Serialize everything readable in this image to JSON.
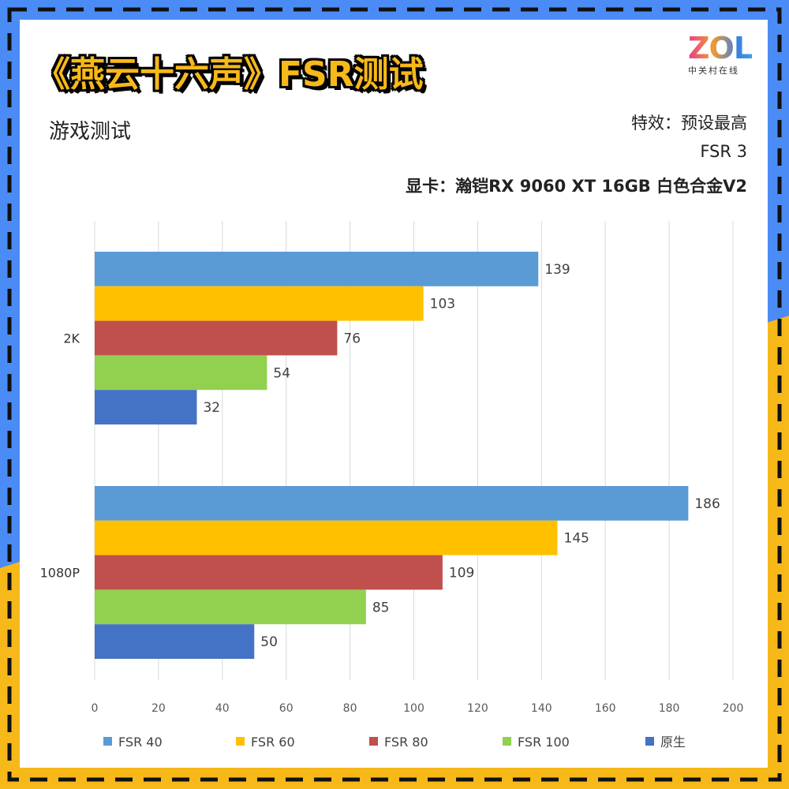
{
  "title": "《燕云十六声》FSR测试",
  "subtitle": "游戏测试",
  "logo": {
    "mark": "ZOL",
    "sub": "中关村在线"
  },
  "info_lines": [
    "特效：预设最高",
    "FSR 3",
    "显卡：瀚铠RX 9060 XT 16GB 白色合金V2"
  ],
  "colors": {
    "border_blue": "#4b8bf5",
    "border_yellow": "#f7b81a",
    "dash": "#111111"
  },
  "chart_data": {
    "type": "bar",
    "orientation": "horizontal",
    "categories": [
      "2K",
      "1080P"
    ],
    "series": [
      {
        "name": "FSR 40",
        "color": "#5b9bd5",
        "values": [
          139,
          186
        ]
      },
      {
        "name": "FSR 60",
        "color": "#ffc000",
        "values": [
          103,
          145
        ]
      },
      {
        "name": "FSR 80",
        "color": "#c0504d",
        "values": [
          76,
          109
        ]
      },
      {
        "name": "FSR 100",
        "color": "#92d050",
        "values": [
          54,
          85
        ]
      },
      {
        "name": "原生",
        "color": "#4472c4",
        "values": [
          32,
          50
        ]
      }
    ],
    "xlim": [
      0,
      200
    ],
    "xticks": [
      0,
      20,
      40,
      60,
      80,
      100,
      120,
      140,
      160,
      180,
      200
    ],
    "grid": true,
    "legend": "bottom",
    "data_labels": true
  }
}
